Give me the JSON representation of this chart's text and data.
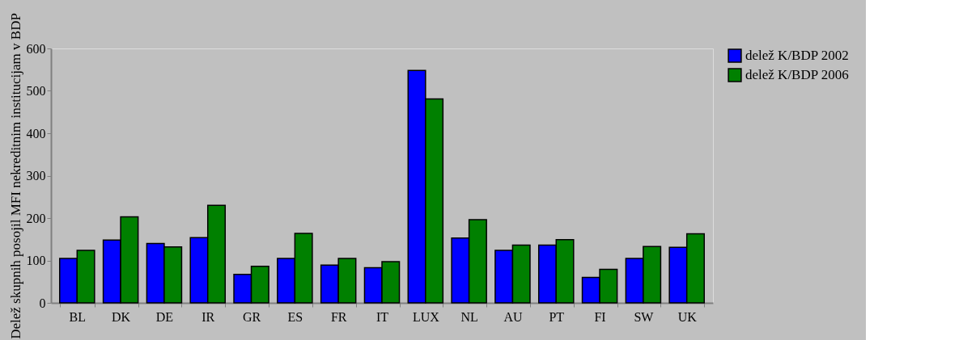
{
  "chart_data": {
    "type": "bar",
    "ylabel": "Delež skupnih posojil MFI nekreditnim institucijam v BDP",
    "categories": [
      "BL",
      "DK",
      "DE",
      "IR",
      "GR",
      "ES",
      "FR",
      "IT",
      "LUX",
      "NL",
      "AU",
      "PT",
      "FI",
      "SW",
      "UK"
    ],
    "series": [
      {
        "name": "delež K/BDP 2002",
        "color": "#0000ff",
        "values": [
          105,
          148,
          140,
          154,
          67,
          105,
          89,
          83,
          548,
          153,
          124,
          136,
          60,
          105,
          131
        ]
      },
      {
        "name": "delež K/BDP 2006",
        "color": "#008000",
        "values": [
          124,
          203,
          132,
          230,
          86,
          164,
          105,
          97,
          481,
          196,
          136,
          149,
          79,
          133,
          163
        ]
      }
    ],
    "ylim": [
      0,
      600
    ],
    "yticks": [
      0,
      100,
      200,
      300,
      400,
      500,
      600
    ],
    "grid": false,
    "legend": "right"
  }
}
